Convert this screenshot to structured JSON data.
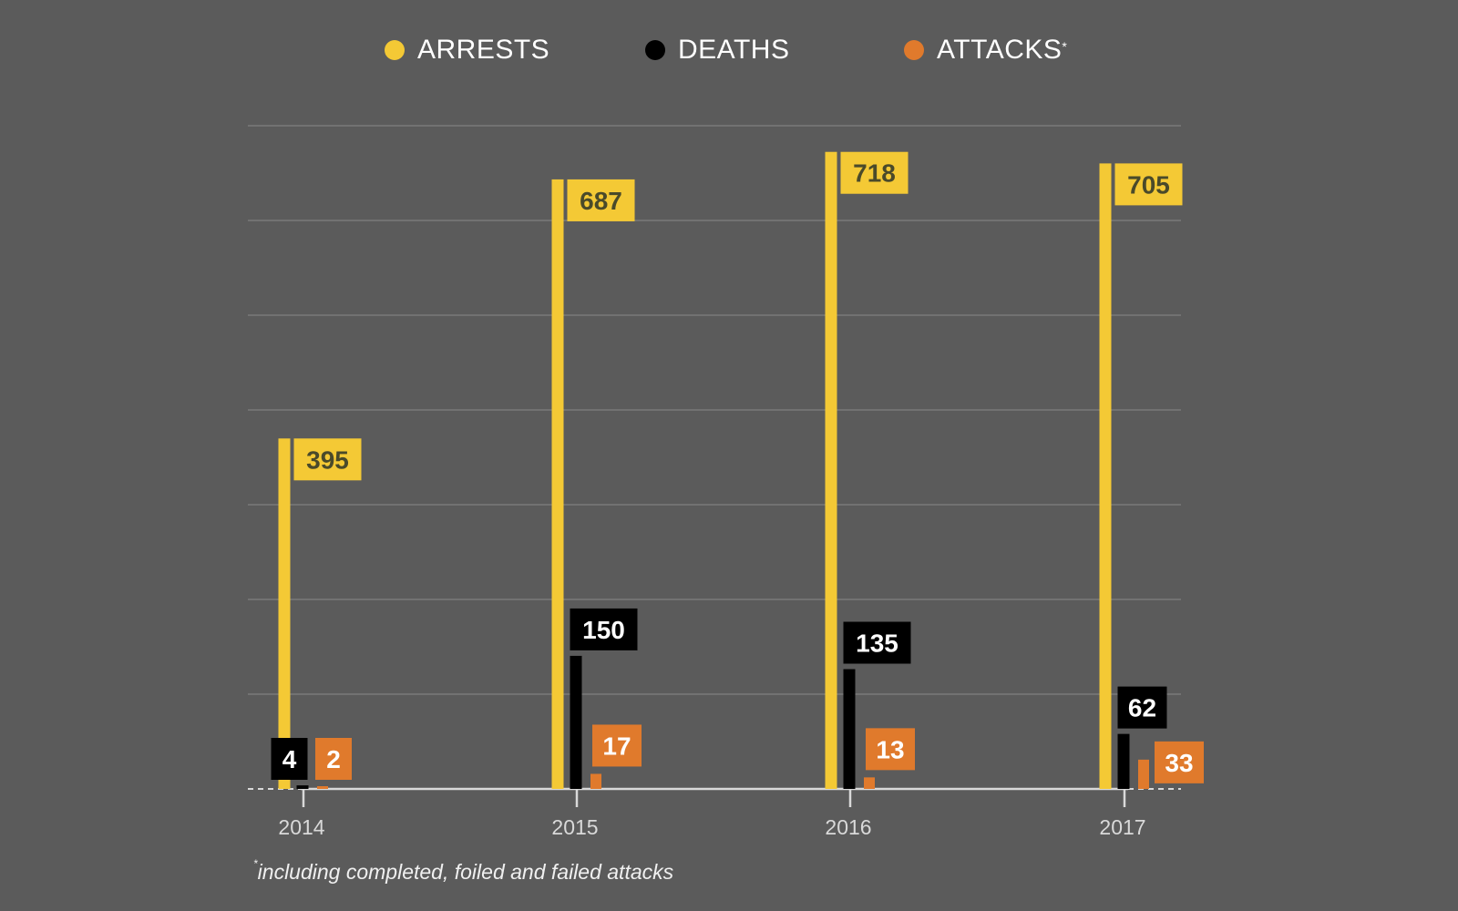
{
  "chart_data": {
    "type": "bar",
    "title": "",
    "xlabel": "",
    "ylabel": "",
    "categories": [
      "2014",
      "2015",
      "2016",
      "2017"
    ],
    "series": [
      {
        "name": "ARRESTS",
        "key": "arrests",
        "color": "#f4c935",
        "label_text_color": "#4a4a2a",
        "values": [
          395,
          687,
          718,
          705
        ]
      },
      {
        "name": "DEATHS",
        "key": "deaths",
        "color": "#000000",
        "label_text_color": "#ffffff",
        "values": [
          4,
          150,
          135,
          62
        ]
      },
      {
        "name": "ATTACKS",
        "key": "attacks",
        "color": "#e07a2c",
        "label_text_color": "#ffffff",
        "values": [
          2,
          17,
          13,
          33
        ]
      }
    ],
    "ylim": [
      0,
      750
    ],
    "grid": true,
    "gridline_step": 107,
    "legend_position": "top-center",
    "legend_marker": "circle",
    "attacks_asterisk": "*",
    "footnote": "including completed, foiled and failed attacks",
    "footnote_marker": "*"
  },
  "colors": {
    "background": "#5b5b5b",
    "gridline": "#7a7a7a",
    "axis": "#d9d9d9"
  }
}
